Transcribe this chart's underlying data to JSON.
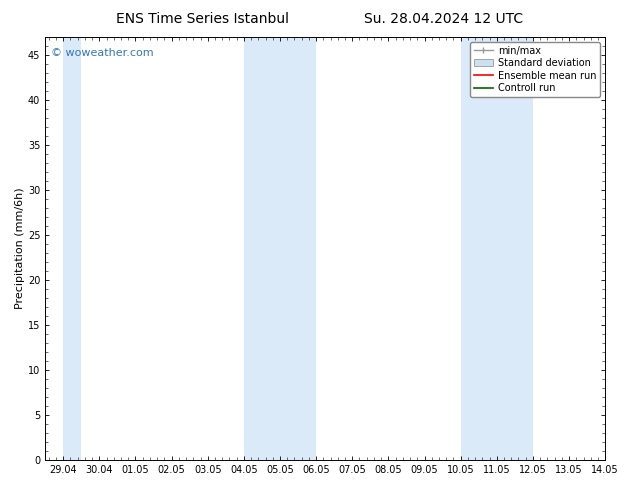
{
  "title_left": "ENS Time Series Istanbul",
  "title_right": "Su. 28.04.2024 12 UTC",
  "ylabel": "Precipitation (mm/6h)",
  "ylim": [
    0,
    47
  ],
  "yticks": [
    0,
    5,
    10,
    15,
    20,
    25,
    30,
    35,
    40,
    45
  ],
  "xtick_labels": [
    "29.04",
    "30.04",
    "01.05",
    "02.05",
    "03.05",
    "04.05",
    "05.05",
    "06.05",
    "07.05",
    "08.05",
    "09.05",
    "10.05",
    "11.05",
    "12.05",
    "13.05",
    "14.05"
  ],
  "shaded_bands": [
    {
      "xstart": 0,
      "xend": 0.5,
      "color": "#daeaf8"
    },
    {
      "xstart": 5,
      "xend": 7,
      "color": "#daeaf8"
    },
    {
      "xstart": 11,
      "xend": 13,
      "color": "#daeaf8"
    }
  ],
  "background_color": "#ffffff",
  "watermark_text": "© woweather.com",
  "watermark_color": "#3377bb",
  "legend_items": [
    {
      "label": "min/max",
      "color": "#999999",
      "style": "errbar"
    },
    {
      "label": "Standard deviation",
      "color": "#cce0f0",
      "style": "filledbox"
    },
    {
      "label": "Ensemble mean run",
      "color": "#ff0000",
      "style": "line"
    },
    {
      "label": "Controll run",
      "color": "#006600",
      "style": "line"
    }
  ],
  "title_fontsize": 10,
  "tick_fontsize": 7,
  "ylabel_fontsize": 8,
  "watermark_fontsize": 8,
  "legend_fontsize": 7
}
